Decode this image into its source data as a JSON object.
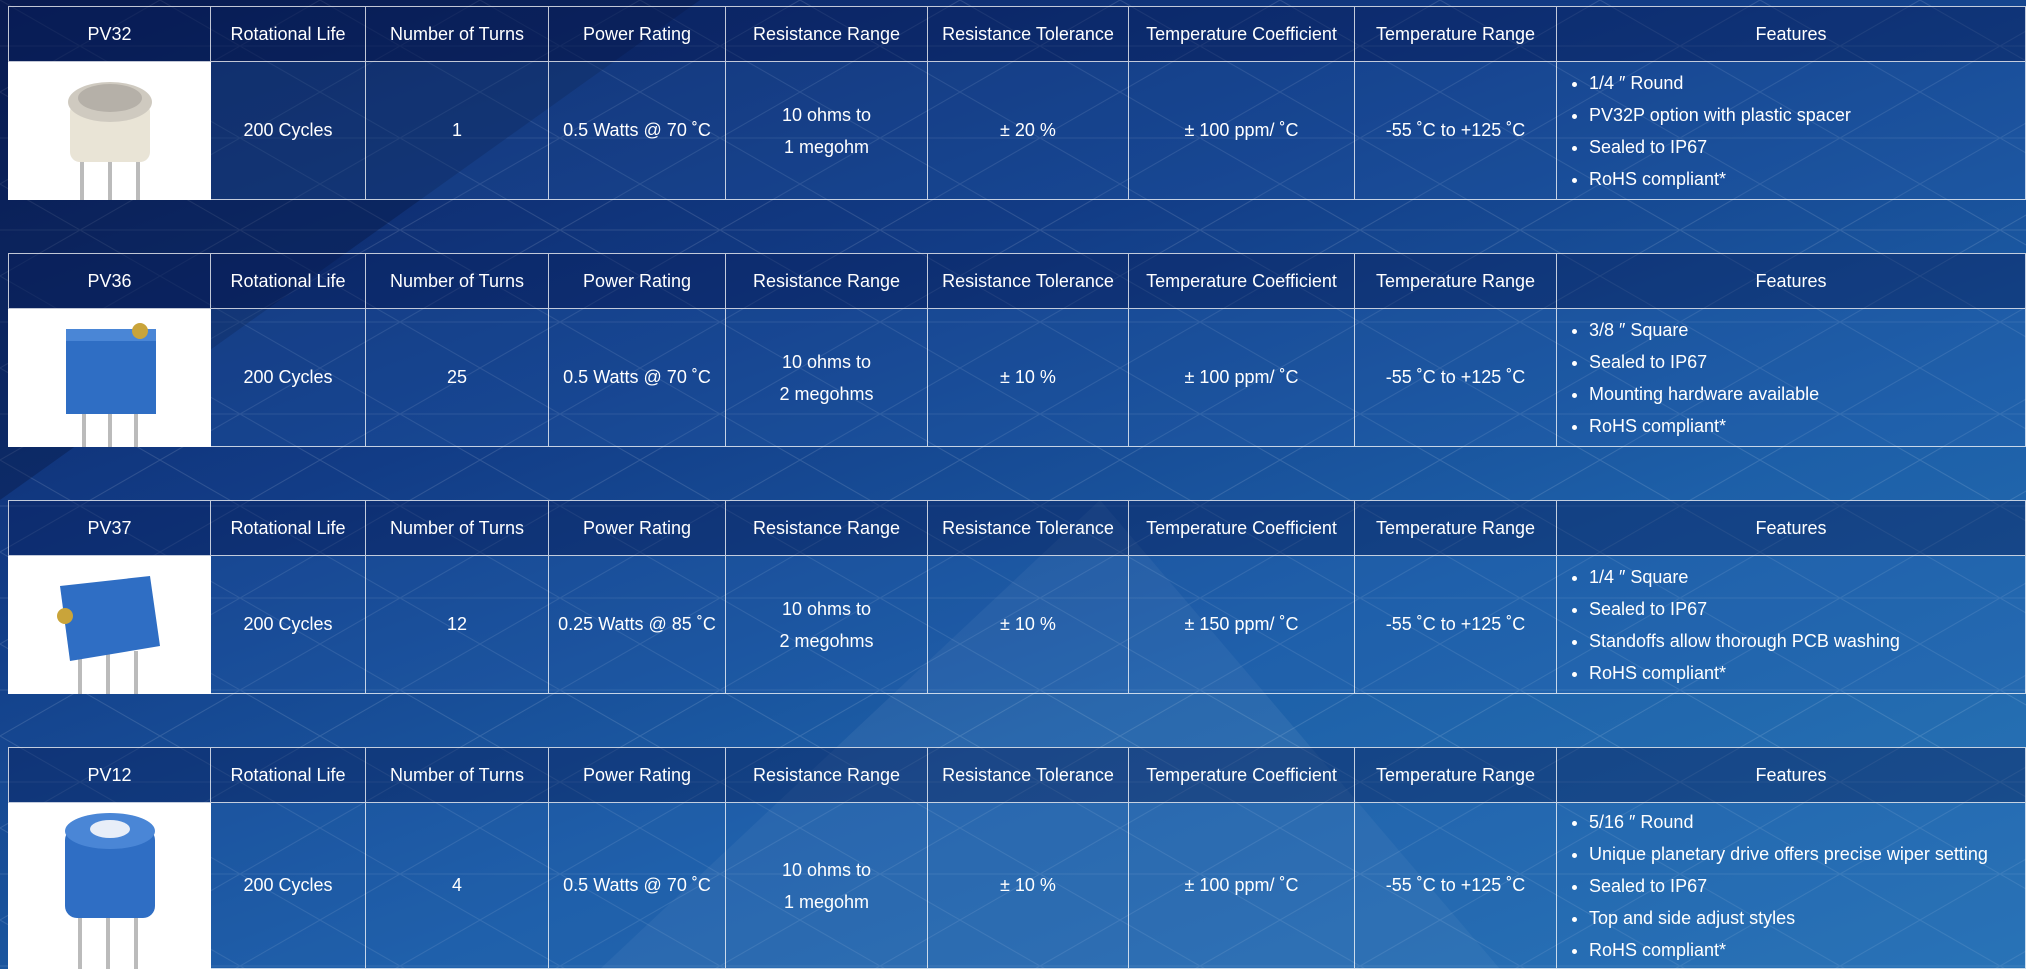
{
  "columns": [
    "Rotational Life",
    "Number of Turns",
    "Power Rating",
    "Resistance Range",
    "Resistance Tolerance",
    "Temperature Coefficient",
    "Temperature Range",
    "Features"
  ],
  "tables": [
    {
      "model": "PV32",
      "rotational_life": "200 Cycles",
      "turns": "1",
      "power": "0.5 Watts @ 70 ˚C",
      "resistance_range": [
        "10 ohms to",
        "1 megohm"
      ],
      "tolerance": "± 20 %",
      "temp_coefficient": "± 100 ppm/ ˚C",
      "temp_range": "-55 ˚C to +125 ˚C",
      "features": [
        "1/4 ″ Round",
        "PV32P option with plastic spacer",
        "Sealed to IP67",
        "RoHS compliant*"
      ]
    },
    {
      "model": "PV36",
      "rotational_life": "200 Cycles",
      "turns": "25",
      "power": "0.5 Watts @ 70 ˚C",
      "resistance_range": [
        "10 ohms to",
        "2 megohms"
      ],
      "tolerance": "± 10 %",
      "temp_coefficient": "± 100 ppm/ ˚C",
      "temp_range": "-55 ˚C to +125 ˚C",
      "features": [
        "3/8 ″ Square",
        "Sealed to IP67",
        "Mounting hardware available",
        "RoHS compliant*"
      ]
    },
    {
      "model": "PV37",
      "rotational_life": "200 Cycles",
      "turns": "12",
      "power": "0.25 Watts @ 85 ˚C",
      "resistance_range": [
        "10 ohms to",
        "2 megohms"
      ],
      "tolerance": "± 10 %",
      "temp_coefficient": "± 150 ppm/ ˚C",
      "temp_range": "-55 ˚C to +125 ˚C",
      "features": [
        "1/4 ″ Square",
        "Sealed to IP67",
        "Standoffs allow thorough PCB washing",
        "RoHS compliant*"
      ]
    },
    {
      "model": "PV12",
      "rotational_life": "200 Cycles",
      "turns": "4",
      "power": "0.5 Watts @ 70 ˚C",
      "resistance_range": [
        "10 ohms to",
        "1 megohm"
      ],
      "tolerance": "± 10 %",
      "temp_coefficient": "± 100 ppm/ ˚C",
      "temp_range": "-55 ˚C to +125 ˚C",
      "features": [
        "5/16 ″ Round",
        "Unique planetary drive offers precise wiper setting",
        "Sealed to IP67",
        "Top and side adjust styles",
        "RoHS compliant*"
      ]
    }
  ]
}
